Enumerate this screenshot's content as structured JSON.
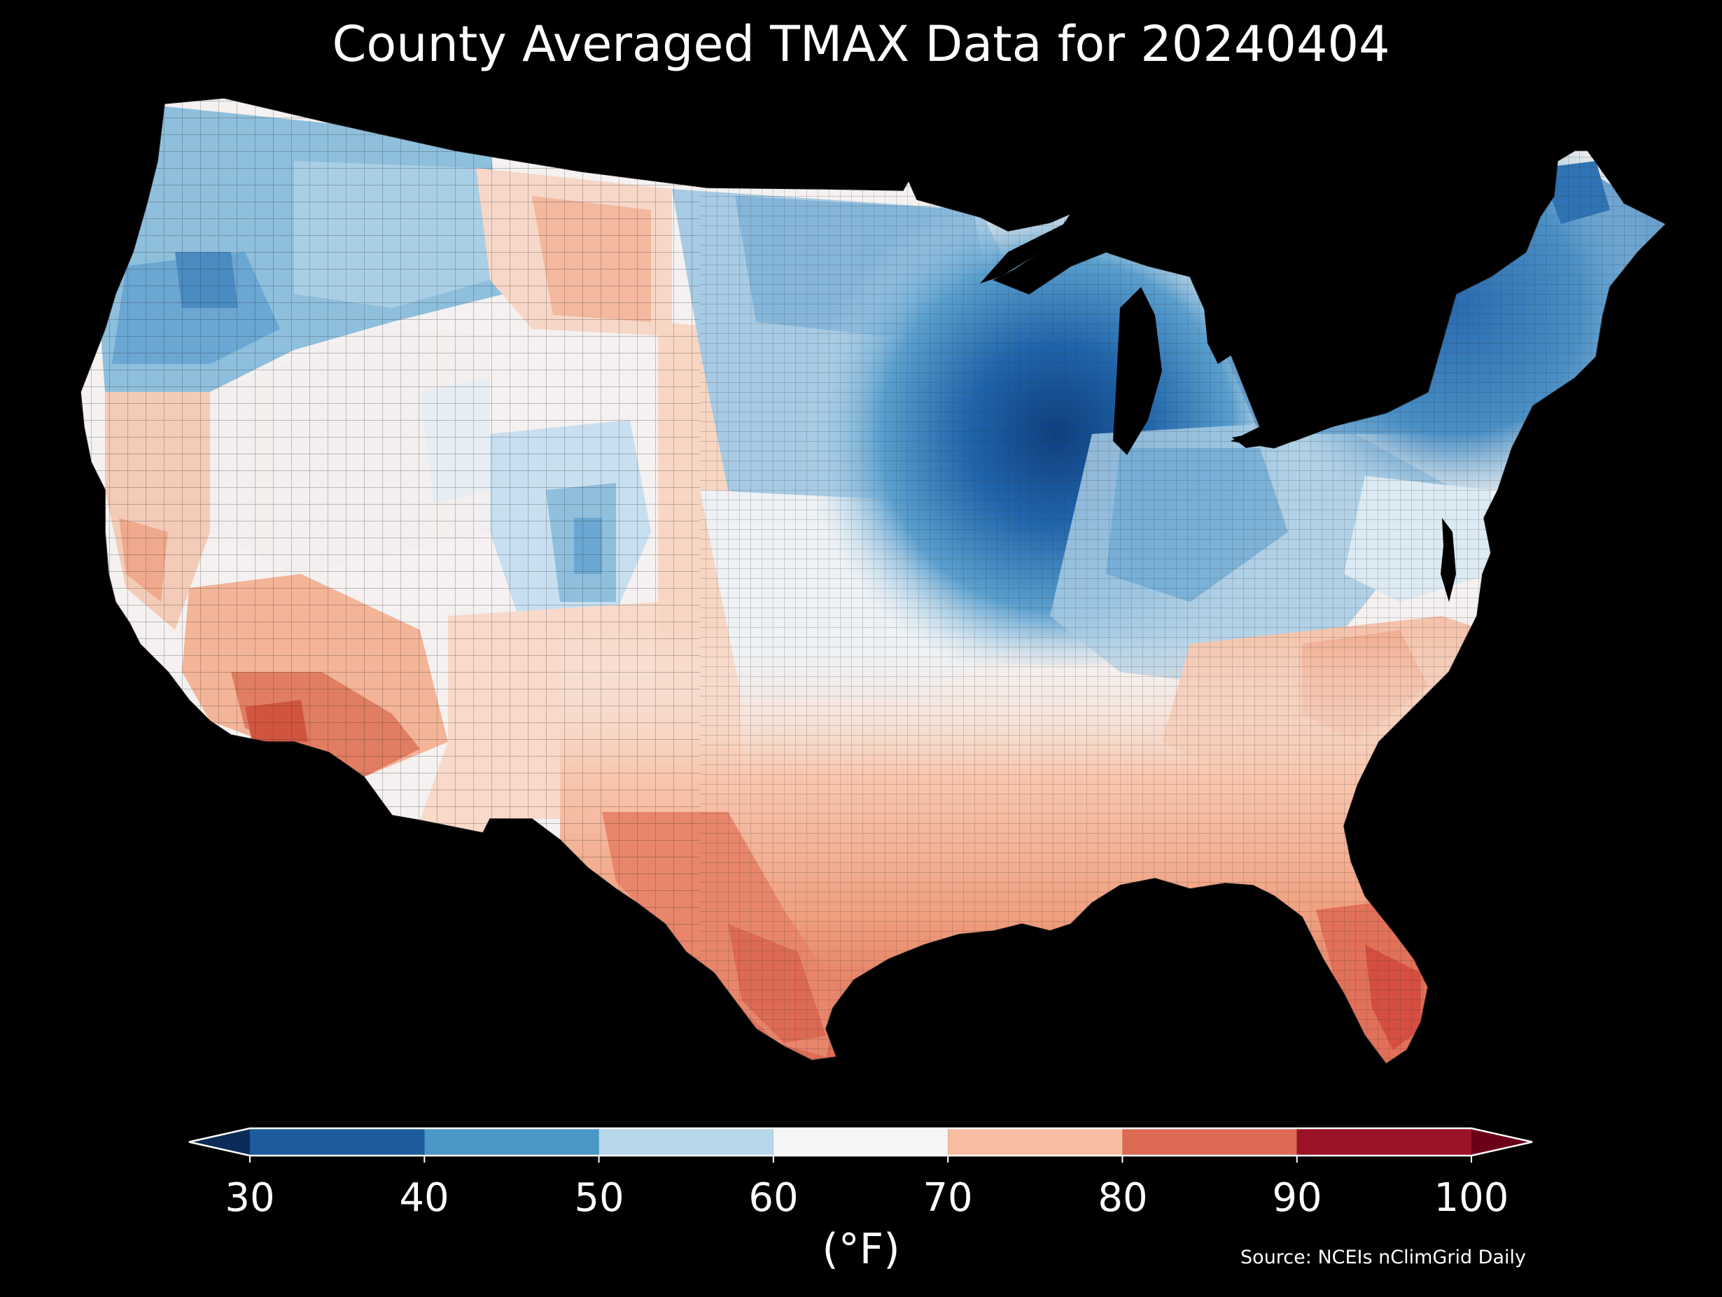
{
  "title": "County Averaged TMAX Data for 20240404",
  "colorbar": {
    "ticks": [
      "30",
      "40",
      "50",
      "60",
      "70",
      "80",
      "90",
      "100"
    ],
    "unit_label": "(°F)",
    "extend": "both",
    "bins": [
      {
        "range": [
          30,
          40
        ],
        "color": "#1c5b9c"
      },
      {
        "range": [
          40,
          50
        ],
        "color": "#4a97c8"
      },
      {
        "range": [
          50,
          60
        ],
        "color": "#b6d6ea"
      },
      {
        "range": [
          60,
          70
        ],
        "color": "#f5f5f5"
      },
      {
        "range": [
          70,
          80
        ],
        "color": "#f8bda3"
      },
      {
        "range": [
          80,
          90
        ],
        "color": "#dd6a54"
      },
      {
        "range": [
          90,
          100
        ],
        "color": "#9b1327"
      }
    ],
    "under_color": "#0a2b58",
    "over_color": "#6a0018"
  },
  "source": "Source: NCEIs nClimGrid Daily",
  "colors": {
    "background": "#000000",
    "text": "#ffffff",
    "county_border": "#222222"
  }
}
